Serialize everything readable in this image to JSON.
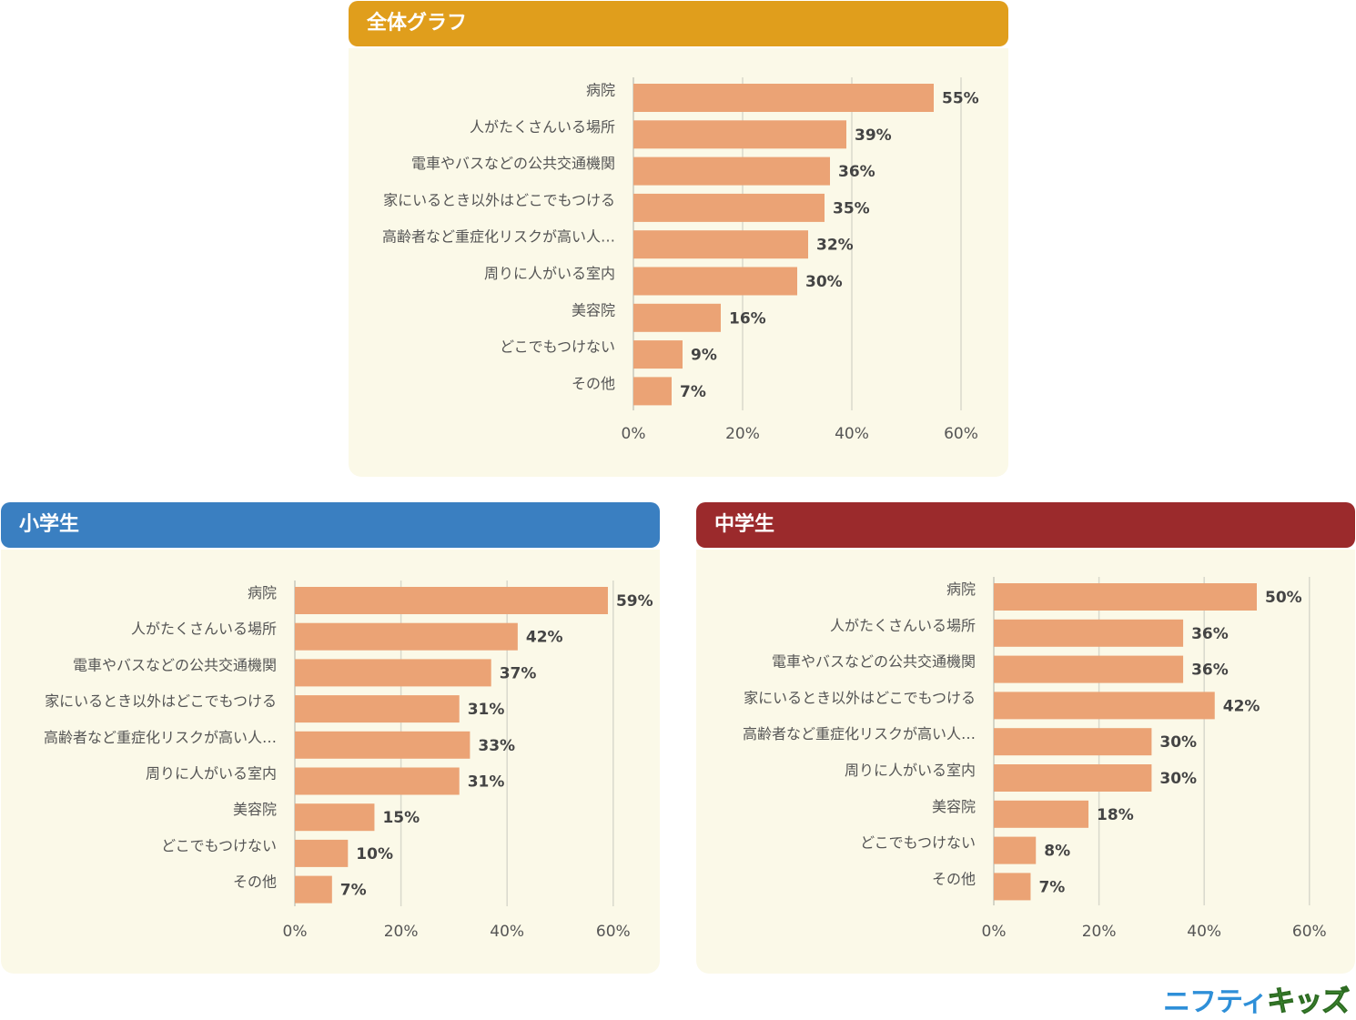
{
  "panels": {
    "overall": {
      "title": "全体グラフ",
      "header_color": "#e09e1c"
    },
    "elementary": {
      "title": "小学生",
      "header_color": "#3a7fc1"
    },
    "middle": {
      "title": "中学生",
      "header_color": "#9b2a2c"
    }
  },
  "logo": {
    "part1": "ニフティ",
    "part2": "キッズ"
  },
  "colors": {
    "bar": "#eba375",
    "panel_background": "#fbf9e8",
    "gridline": "#d9d9cc"
  },
  "chart_data": [
    {
      "type": "bar",
      "orientation": "horizontal",
      "title": "全体グラフ",
      "categories": [
        "病院",
        "人がたくさんいる場所",
        "電車やバスなどの公共交通機関",
        "家にいるとき以外はどこでもつける",
        "高齢者など重症化リスクが高い人…",
        "周りに人がいる室内",
        "美容院",
        "どこでもつけない",
        "その他"
      ],
      "values": [
        55,
        39,
        36,
        35,
        32,
        30,
        16,
        9,
        7
      ],
      "value_labels": [
        "55%",
        "39%",
        "36%",
        "35%",
        "32%",
        "30%",
        "16%",
        "9%",
        "7%"
      ],
      "xlim": [
        0,
        60
      ],
      "xticks": [
        "0%",
        "20%",
        "40%",
        "60%"
      ],
      "grid": true
    },
    {
      "type": "bar",
      "orientation": "horizontal",
      "title": "小学生",
      "categories": [
        "病院",
        "人がたくさんいる場所",
        "電車やバスなどの公共交通機関",
        "家にいるとき以外はどこでもつける",
        "高齢者など重症化リスクが高い人…",
        "周りに人がいる室内",
        "美容院",
        "どこでもつけない",
        "その他"
      ],
      "values": [
        59,
        42,
        37,
        31,
        33,
        31,
        15,
        10,
        7
      ],
      "value_labels": [
        "59%",
        "42%",
        "37%",
        "31%",
        "33%",
        "31%",
        "15%",
        "10%",
        "7%"
      ],
      "xlim": [
        0,
        60
      ],
      "xticks": [
        "0%",
        "20%",
        "40%",
        "60%"
      ],
      "grid": true
    },
    {
      "type": "bar",
      "orientation": "horizontal",
      "title": "中学生",
      "categories": [
        "病院",
        "人がたくさんいる場所",
        "電車やバスなどの公共交通機関",
        "家にいるとき以外はどこでもつける",
        "高齢者など重症化リスクが高い人…",
        "周りに人がいる室内",
        "美容院",
        "どこでもつけない",
        "その他"
      ],
      "values": [
        50,
        36,
        36,
        42,
        30,
        30,
        18,
        8,
        7
      ],
      "value_labels": [
        "50%",
        "36%",
        "36%",
        "42%",
        "30%",
        "30%",
        "18%",
        "8%",
        "7%"
      ],
      "xlim": [
        0,
        60
      ],
      "xticks": [
        "0%",
        "20%",
        "40%",
        "60%"
      ],
      "grid": true
    }
  ]
}
